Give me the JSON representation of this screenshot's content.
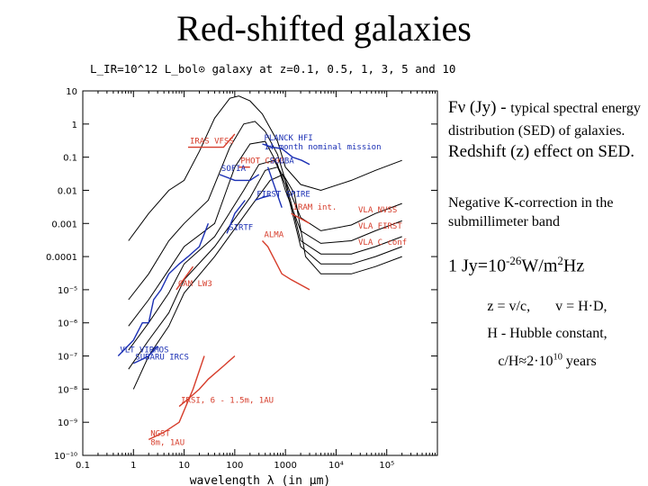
{
  "slide": {
    "title": "Red-shifted galaxies",
    "note_flux": "Fν (Jy) - ",
    "note_flux_small": "typical spectral energy distribution (SED) of galaxies.",
    "note_redshift": " Redshift (z) effect on SED.",
    "note_kcorr": "Negative K-correction in the submillimeter band",
    "note_jy_prefix": "1 Jy=10",
    "note_jy_exp": "-26",
    "note_jy_unit": "W/m",
    "note_jy_unit_exp": "2",
    "note_jy_suffix": "Hz",
    "note_z": "z = v/c,",
    "note_v": "v = H·D,",
    "note_h": "H - Hubble constant,",
    "note_age_prefix": "c/H≈2·10",
    "note_age_exp": "10",
    "note_age_suffix": " years"
  },
  "chart_data": {
    "type": "line",
    "title": "L_IR=10^12 L_bol⊙ galaxy at z=0.1, 0.5, 1, 3, 5 and 10",
    "xlabel": "wavelength λ (in μm)",
    "ylabel": "",
    "xscale": "log",
    "yscale": "log",
    "xlim": [
      0.1,
      1000000
    ],
    "ylim": [
      1e-10,
      10
    ],
    "x_ticks": [
      "0.1",
      "1",
      "10",
      "100",
      "1000",
      "10⁴",
      "10⁵"
    ],
    "y_ticks": [
      "10",
      "1",
      "0.1",
      "0.01",
      "0.001",
      "0.0001",
      "10⁻⁵",
      "10⁻⁶",
      "10⁻⁷",
      "10⁻⁸",
      "10⁻⁹",
      "10⁻¹⁰"
    ],
    "series": [
      {
        "name": "z=0.1",
        "color": "#000000",
        "x": [
          0.8,
          2,
          5,
          10,
          20,
          40,
          80,
          120,
          200,
          350,
          700,
          1000,
          2000,
          5000,
          20000,
          60000,
          200000
        ],
        "y": [
          0.0003,
          0.002,
          0.01,
          0.02,
          0.15,
          1.5,
          6,
          7,
          5,
          2,
          0.3,
          0.05,
          0.015,
          0.01,
          0.02,
          0.04,
          0.08
        ]
      },
      {
        "name": "z=0.5",
        "color": "#000000",
        "x": [
          0.8,
          2,
          5,
          10,
          30,
          80,
          150,
          250,
          400,
          700,
          1000,
          2000,
          5000,
          20000,
          60000,
          200000
        ],
        "y": [
          5e-06,
          3e-05,
          0.0003,
          0.001,
          0.005,
          0.2,
          1,
          1.2,
          0.6,
          0.12,
          0.02,
          0.0015,
          0.0006,
          0.0009,
          0.002,
          0.004
        ]
      },
      {
        "name": "z=1",
        "color": "#000000",
        "x": [
          0.8,
          2,
          5,
          10,
          40,
          100,
          200,
          400,
          700,
          1000,
          2000,
          5000,
          20000,
          60000,
          200000
        ],
        "y": [
          8e-07,
          5e-06,
          4e-05,
          0.0002,
          0.001,
          0.05,
          0.25,
          0.3,
          0.06,
          0.01,
          0.0006,
          0.00025,
          0.0003,
          0.0006,
          0.0012
        ]
      },
      {
        "name": "z=3",
        "color": "#000000",
        "x": [
          0.8,
          2,
          5,
          10,
          40,
          150,
          300,
          600,
          1000,
          2000,
          5000,
          20000,
          60000,
          200000
        ],
        "y": [
          1.5e-07,
          1e-06,
          8e-06,
          6e-05,
          0.0004,
          0.01,
          0.06,
          0.08,
          0.02,
          0.0003,
          0.00012,
          0.00012,
          0.0002,
          0.0004
        ]
      },
      {
        "name": "z=5",
        "color": "#000000",
        "x": [
          0.8,
          2,
          5,
          10,
          40,
          200,
          400,
          700,
          1000,
          2000,
          5000,
          20000,
          60000,
          200000
        ],
        "y": [
          4e-08,
          3e-07,
          2e-06,
          2e-05,
          0.0002,
          0.006,
          0.04,
          0.05,
          0.015,
          0.0002,
          6e-05,
          6e-05,
          0.0001,
          0.0002
        ]
      },
      {
        "name": "z=10",
        "color": "#000000",
        "x": [
          1,
          2,
          5,
          10,
          40,
          200,
          500,
          900,
          1500,
          2500,
          5000,
          20000,
          60000,
          200000
        ],
        "y": [
          1e-08,
          1e-07,
          8e-07,
          8e-06,
          0.0001,
          0.003,
          0.02,
          0.03,
          0.008,
          0.0001,
          3e-05,
          3e-05,
          5e-05,
          0.0001
        ]
      }
    ],
    "instruments": [
      {
        "name": "PLANCK HFI",
        "note": "14 month nominal mission",
        "color": "#1a2fb4",
        "x": [
          350,
          550,
          850,
          1380,
          2100,
          3000
        ],
        "y": [
          0.25,
          0.2,
          0.18,
          0.1,
          0.08,
          0.06
        ]
      },
      {
        "name": "IRAS VFSS",
        "color": "#d63c2a",
        "x": [
          12,
          25,
          60,
          100
        ],
        "y": [
          0.2,
          0.2,
          0.2,
          0.5
        ]
      },
      {
        "name": "PHOT C200",
        "color": "#d63c2a",
        "x": [
          120,
          200
        ],
        "y": [
          0.05,
          0.05
        ]
      },
      {
        "name": "SCUBA",
        "color": "#1a2fb4",
        "x": [
          450,
          850
        ],
        "y": [
          0.05,
          0.003
        ]
      },
      {
        "name": "SOFIA",
        "color": "#1a2fb4",
        "x": [
          50,
          100,
          200,
          300
        ],
        "y": [
          0.03,
          0.02,
          0.02,
          0.03
        ]
      },
      {
        "name": "FIRST SPIRE",
        "color": "#1a2fb4",
        "x": [
          250,
          350,
          500
        ],
        "y": [
          0.005,
          0.006,
          0.007
        ]
      },
      {
        "name": "IRAM int.",
        "color": "#d63c2a",
        "x": [
          1300,
          3000
        ],
        "y": [
          0.002,
          0.001
        ]
      },
      {
        "name": "SIRTF",
        "color": "#1a2fb4",
        "x": [
          70,
          100,
          160
        ],
        "y": [
          0.0005,
          0.002,
          0.005
        ]
      },
      {
        "name": "CAM LW3",
        "color": "#d63c2a",
        "x": [
          7,
          15
        ],
        "y": [
          1e-05,
          5e-05
        ]
      },
      {
        "name": "ALMA",
        "color": "#d63c2a",
        "x": [
          350,
          450,
          850,
          1300,
          3000
        ],
        "y": [
          0.0003,
          0.0002,
          3e-05,
          2e-05,
          1e-05
        ]
      },
      {
        "name": "VLT VIRMOS",
        "color": "#1a2fb4",
        "x": [
          0.5,
          1,
          1.5,
          2,
          2.5,
          3.5,
          5,
          8,
          12,
          20,
          30
        ],
        "y": [
          1e-07,
          3e-07,
          1e-06,
          1e-06,
          5e-06,
          1e-05,
          3e-05,
          6e-05,
          0.0001,
          0.0002,
          0.001
        ]
      },
      {
        "name": "SUBARU IRCS",
        "color": "#1a2fb4",
        "x": [
          1,
          1.5,
          2,
          3
        ],
        "y": [
          6e-08,
          8e-08,
          1e-07,
          2e-07
        ]
      },
      {
        "name": "IRSI, 6 - 1.5m, 1AU",
        "color": "#d63c2a",
        "x": [
          8,
          12,
          20,
          30,
          60,
          100
        ],
        "y": [
          3e-09,
          5e-09,
          1e-08,
          2e-08,
          5e-08,
          1e-07
        ]
      },
      {
        "name": "NGST",
        "note": "8m, 1AU",
        "color": "#d63c2a",
        "x": [
          2,
          4,
          8,
          15,
          25
        ],
        "y": [
          3e-10,
          5e-10,
          1e-09,
          1e-08,
          1e-07
        ]
      }
    ],
    "annotations": [
      "VLA NVSS",
      "VLA FIRST",
      "VLA C conf"
    ]
  }
}
